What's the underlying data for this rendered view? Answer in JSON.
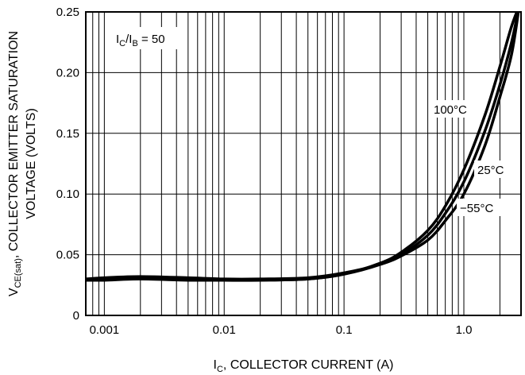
{
  "chart_data": {
    "type": "line",
    "xlabel_main": "I",
    "xlabel_sub": "C",
    "xlabel_rest": ", COLLECTOR CURRENT (A)",
    "ylabel_line1_main": "V",
    "ylabel_line1_sub": "CE(sat)",
    "ylabel_line1_rest": ", COLLECTOR EMITTER SATURATION",
    "ylabel_line2": "VOLTAGE (VOLTS)",
    "x_scale": "log",
    "xlim": [
      0.0007,
      3.0
    ],
    "ylim": [
      0,
      0.25
    ],
    "x_ticks": [
      {
        "value": 0.001,
        "label": "0.001"
      },
      {
        "value": 0.01,
        "label": "0.01"
      },
      {
        "value": 0.1,
        "label": "0.1"
      },
      {
        "value": 1.0,
        "label": "1.0"
      }
    ],
    "y_ticks": [
      {
        "value": 0,
        "label": "0"
      },
      {
        "value": 0.05,
        "label": "0.05"
      },
      {
        "value": 0.1,
        "label": "0.10"
      },
      {
        "value": 0.15,
        "label": "0.15"
      },
      {
        "value": 0.2,
        "label": "0.20"
      },
      {
        "value": 0.25,
        "label": "0.25"
      }
    ],
    "grid": true,
    "annotation": {
      "main": "I",
      "sub1": "C",
      "mid": "/I",
      "sub2": "B",
      "rest": " = 50"
    },
    "series": [
      {
        "name": "100°C",
        "x": [
          0.0007,
          0.001,
          0.002,
          0.005,
          0.01,
          0.02,
          0.05,
          0.1,
          0.2,
          0.3,
          0.5,
          0.7,
          1.0,
          1.5,
          2.0,
          2.5,
          2.9
        ],
        "y": [
          0.029,
          0.029,
          0.03,
          0.029,
          0.029,
          0.029,
          0.03,
          0.034,
          0.043,
          0.052,
          0.07,
          0.09,
          0.12,
          0.165,
          0.205,
          0.238,
          0.255
        ]
      },
      {
        "name": "25°C",
        "x": [
          0.0007,
          0.001,
          0.002,
          0.005,
          0.01,
          0.02,
          0.05,
          0.1,
          0.2,
          0.3,
          0.5,
          0.7,
          1.0,
          1.5,
          2.0,
          2.5,
          2.9
        ],
        "y": [
          0.029,
          0.03,
          0.031,
          0.03,
          0.029,
          0.029,
          0.03,
          0.034,
          0.042,
          0.05,
          0.066,
          0.084,
          0.11,
          0.152,
          0.19,
          0.225,
          0.255
        ]
      },
      {
        "name": "−55°C",
        "x": [
          0.0007,
          0.001,
          0.002,
          0.005,
          0.01,
          0.02,
          0.05,
          0.1,
          0.2,
          0.3,
          0.5,
          0.7,
          1.0,
          1.5,
          2.0,
          2.5,
          2.9
        ],
        "y": [
          0.03,
          0.031,
          0.032,
          0.031,
          0.03,
          0.03,
          0.031,
          0.035,
          0.042,
          0.049,
          0.062,
          0.078,
          0.1,
          0.14,
          0.18,
          0.215,
          0.255
        ]
      }
    ]
  }
}
